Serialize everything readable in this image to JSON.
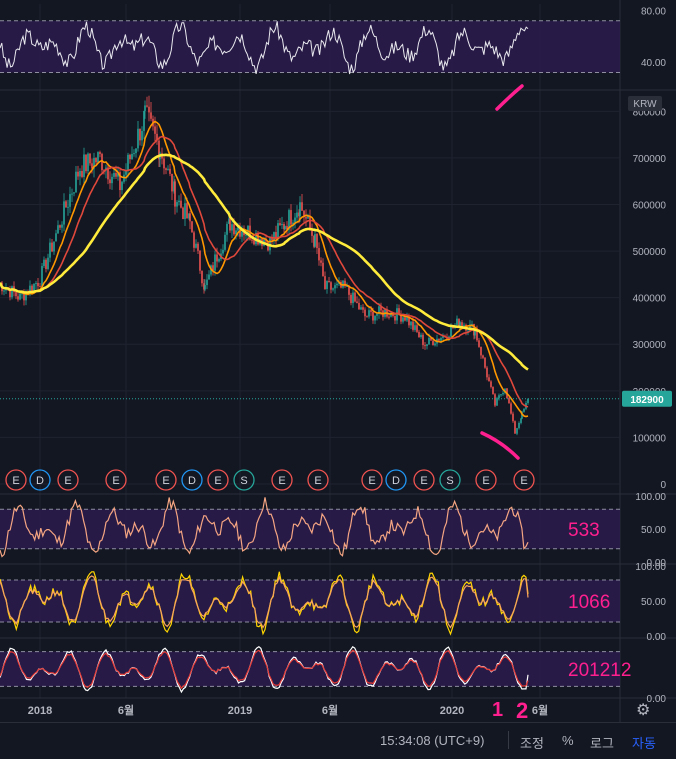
{
  "chart_data": [
    {
      "type": "line",
      "pane": "rsi",
      "yticks": [
        "80.00",
        "40.00"
      ],
      "ylim": [
        20,
        85
      ],
      "bands": [
        72,
        32
      ],
      "series": [
        {
          "color": "#e8e8ee",
          "seed": 3,
          "base": 52,
          "amp": 16,
          "noise": 6,
          "end": 66
        }
      ]
    },
    {
      "type": "line",
      "pane": "price",
      "currency": "KRW",
      "yticks": [
        "800000",
        "700000",
        "600000",
        "500000",
        "400000",
        "300000",
        "200000",
        "100000",
        "0"
      ],
      "ylim": [
        0,
        820000
      ],
      "last_price": "182900",
      "last_value": 182900,
      "price_path": [
        [
          0,
          430000
        ],
        [
          20,
          400000
        ],
        [
          40,
          440000
        ],
        [
          60,
          560000
        ],
        [
          80,
          680000
        ],
        [
          100,
          700000
        ],
        [
          120,
          640000
        ],
        [
          145,
          790000
        ],
        [
          160,
          720000
        ],
        [
          175,
          620000
        ],
        [
          190,
          560000
        ],
        [
          205,
          420000
        ],
        [
          215,
          480000
        ],
        [
          230,
          560000
        ],
        [
          250,
          540000
        ],
        [
          270,
          520000
        ],
        [
          285,
          560000
        ],
        [
          300,
          600000
        ],
        [
          315,
          520000
        ],
        [
          325,
          420000
        ],
        [
          345,
          420000
        ],
        [
          365,
          360000
        ],
        [
          385,
          370000
        ],
        [
          405,
          360000
        ],
        [
          425,
          300000
        ],
        [
          445,
          320000
        ],
        [
          460,
          350000
        ],
        [
          475,
          330000
        ],
        [
          485,
          250000
        ],
        [
          495,
          170000
        ],
        [
          505,
          210000
        ],
        [
          515,
          110000
        ],
        [
          522,
          150000
        ],
        [
          528,
          180000
        ]
      ],
      "series": [
        {
          "name": "",
          "color": "#ff9800",
          "period": 3
        },
        {
          "name": "",
          "color": "#e0483b",
          "period": 6
        },
        {
          "name": "",
          "color": "#ffeb3b",
          "period": 14
        }
      ],
      "events": [
        "E",
        "D",
        "E",
        "E",
        "E",
        "D",
        "E",
        "S",
        "E",
        "E",
        "E",
        "D",
        "E",
        "S",
        "E",
        "E"
      ]
    },
    {
      "type": "line",
      "pane": "osc1",
      "label": "533",
      "yticks": [
        "100.00",
        "50.00",
        "0.00"
      ],
      "ylim": [
        0,
        100
      ],
      "bands": [
        80,
        20
      ],
      "series": [
        {
          "color": "#f4a582",
          "seed": 11,
          "base": 50,
          "amp": 40,
          "noise": 10,
          "end": 30
        }
      ]
    },
    {
      "type": "line",
      "pane": "osc2",
      "label": "1066",
      "yticks": [
        "100.00",
        "50.00",
        "0.00"
      ],
      "ylim": [
        0,
        100
      ],
      "bands": [
        80,
        20
      ],
      "series": [
        {
          "color": "#ffd600",
          "seed": 21,
          "base": 50,
          "amp": 42,
          "noise": 8,
          "end": 60
        },
        {
          "color": "#f7a35c",
          "seed": 21,
          "base": 50,
          "amp": 36,
          "noise": 4,
          "end": 55
        }
      ]
    },
    {
      "type": "line",
      "pane": "osc3",
      "label": "201212",
      "yticks": [
        "0.00"
      ],
      "ylim": [
        0,
        100
      ],
      "bands": [
        80,
        20
      ],
      "series": [
        {
          "color": "#ffffff",
          "seed": 31,
          "base": 50,
          "amp": 38,
          "noise": 3,
          "end": 40
        },
        {
          "color": "#e53935",
          "seed": 31,
          "base": 50,
          "amp": 32,
          "noise": 2,
          "end": 30
        }
      ]
    }
  ],
  "annotations": {
    "number_1": "1",
    "number_2": "2"
  },
  "xaxis": {
    "ticks": [
      "2018",
      "6월",
      "2019",
      "6월",
      "2020",
      "6월"
    ]
  },
  "status_bar": {
    "time": "15:34:08 (UTC+9)",
    "adjust": "조정",
    "percent": "%",
    "log": "로그",
    "auto": "자동"
  },
  "colors": {
    "background": "#131722",
    "band_fill": "#2d1b4e",
    "accent_magenta": "#ff1f8e",
    "last_price_bg": "#26a69a",
    "auto_blue": "#2962ff"
  }
}
